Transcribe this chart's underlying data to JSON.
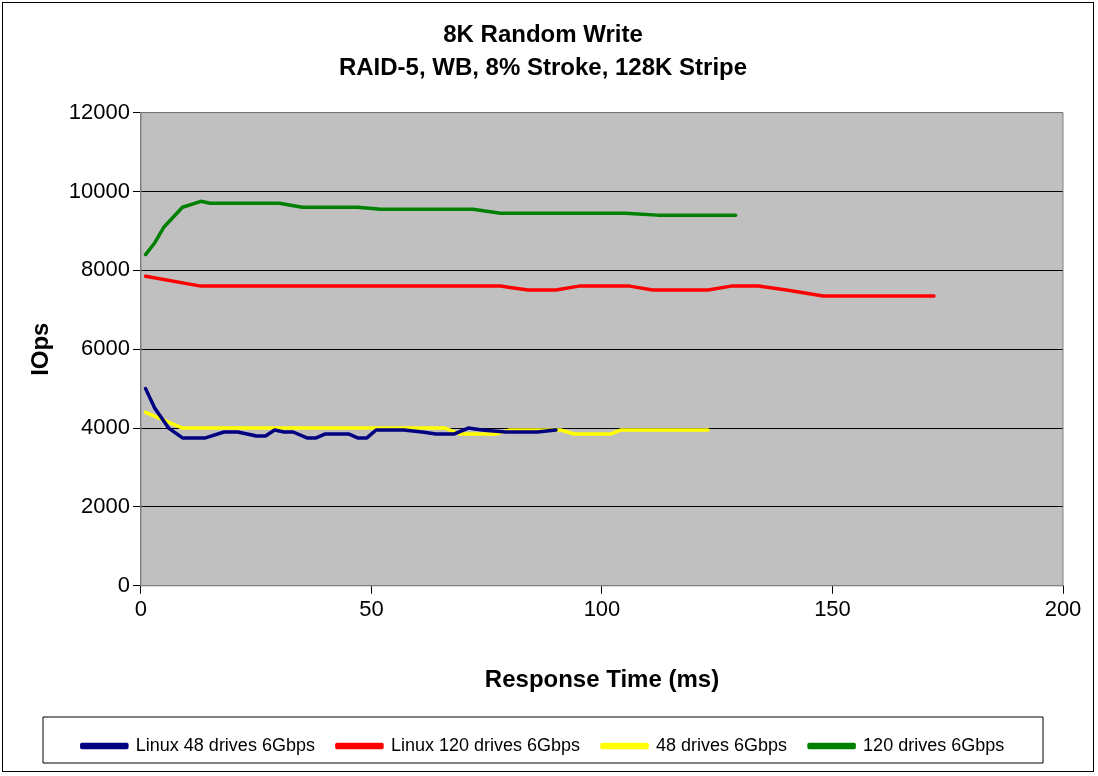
{
  "chart_data": {
    "type": "line",
    "title": "8K Random Write",
    "subtitle": "RAID-5, WB, 8% Stroke, 128K Stripe",
    "xlabel": "Response Time (ms)",
    "ylabel": "IOps",
    "xlim": [
      0,
      200
    ],
    "xticks": [
      0,
      50,
      100,
      150,
      200
    ],
    "ylim": [
      0,
      12000
    ],
    "yticks": [
      0,
      2000,
      4000,
      6000,
      8000,
      10000,
      12000
    ],
    "grid": "y",
    "legend": "bottom",
    "marker": "none",
    "line_style": "solid",
    "series": [
      {
        "name": "Linux 48 drives 6Gbps",
        "color": "#000080",
        "x": [
          1,
          3,
          6,
          9,
          14,
          18,
          21,
          25,
          27,
          29,
          31,
          33,
          36,
          38,
          40,
          45,
          47,
          49,
          51,
          57,
          61,
          64,
          68,
          71,
          74,
          79,
          86,
          90
        ],
        "values": [
          5000,
          4500,
          4000,
          3750,
          3750,
          3900,
          3900,
          3800,
          3800,
          3950,
          3900,
          3900,
          3750,
          3750,
          3850,
          3850,
          3750,
          3750,
          3950,
          3950,
          3900,
          3850,
          3850,
          4000,
          3950,
          3900,
          3900,
          3950
        ]
      },
      {
        "name": "Linux 120 drives 6Gbps",
        "color": "#ff0000",
        "x": [
          1,
          13,
          78,
          84,
          90,
          95,
          106,
          111,
          123,
          128,
          134,
          140,
          148,
          172
        ],
        "values": [
          7850,
          7600,
          7600,
          7500,
          7500,
          7600,
          7600,
          7500,
          7500,
          7600,
          7600,
          7500,
          7350,
          7350
        ]
      },
      {
        "name": "48 drives 6Gbps",
        "color": "#ffff00",
        "x": [
          1,
          9,
          66,
          69,
          77,
          80,
          91,
          94,
          102,
          104,
          123
        ],
        "values": [
          4400,
          4000,
          4000,
          3850,
          3850,
          3950,
          3950,
          3850,
          3850,
          3950,
          3950
        ]
      },
      {
        "name": "120 drives 6Gbps",
        "color": "#008000",
        "x": [
          1,
          3,
          5,
          9,
          13,
          15,
          30,
          35,
          47,
          52,
          72,
          78,
          105,
          112,
          129
        ],
        "values": [
          8400,
          8700,
          9100,
          9600,
          9750,
          9700,
          9700,
          9600,
          9600,
          9550,
          9550,
          9450,
          9450,
          9400,
          9400
        ]
      }
    ]
  }
}
